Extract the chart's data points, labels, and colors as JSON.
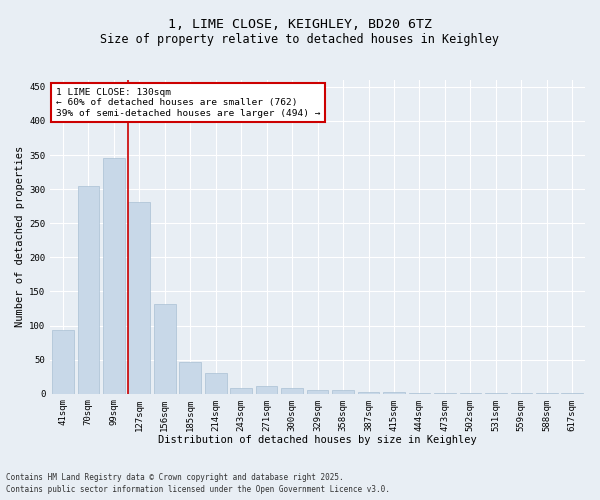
{
  "title_line1": "1, LIME CLOSE, KEIGHLEY, BD20 6TZ",
  "title_line2": "Size of property relative to detached houses in Keighley",
  "xlabel": "Distribution of detached houses by size in Keighley",
  "ylabel": "Number of detached properties",
  "categories": [
    "41sqm",
    "70sqm",
    "99sqm",
    "127sqm",
    "156sqm",
    "185sqm",
    "214sqm",
    "243sqm",
    "271sqm",
    "300sqm",
    "329sqm",
    "358sqm",
    "387sqm",
    "415sqm",
    "444sqm",
    "473sqm",
    "502sqm",
    "531sqm",
    "559sqm",
    "588sqm",
    "617sqm"
  ],
  "values": [
    94,
    305,
    345,
    281,
    131,
    47,
    30,
    9,
    11,
    9,
    6,
    5,
    3,
    2,
    1,
    1,
    1,
    1,
    1,
    1,
    1
  ],
  "bar_color": "#c8d8e8",
  "bar_edge_color": "#aac0d4",
  "marker_index": 3,
  "marker_line_color": "#cc0000",
  "annotation_line1": "1 LIME CLOSE: 130sqm",
  "annotation_line2": "← 60% of detached houses are smaller (762)",
  "annotation_line3": "39% of semi-detached houses are larger (494) →",
  "annotation_box_color": "#cc0000",
  "ylim": [
    0,
    460
  ],
  "yticks": [
    0,
    50,
    100,
    150,
    200,
    250,
    300,
    350,
    400,
    450
  ],
  "footnote_line1": "Contains HM Land Registry data © Crown copyright and database right 2025.",
  "footnote_line2": "Contains public sector information licensed under the Open Government Licence v3.0.",
  "bg_color": "#e8eef4",
  "plot_bg_color": "#e8eef4",
  "grid_color": "#ffffff",
  "title_fontsize": 9.5,
  "subtitle_fontsize": 8.5,
  "axis_label_fontsize": 7.5,
  "tick_fontsize": 6.5,
  "annot_fontsize": 6.8,
  "footnote_fontsize": 5.5
}
